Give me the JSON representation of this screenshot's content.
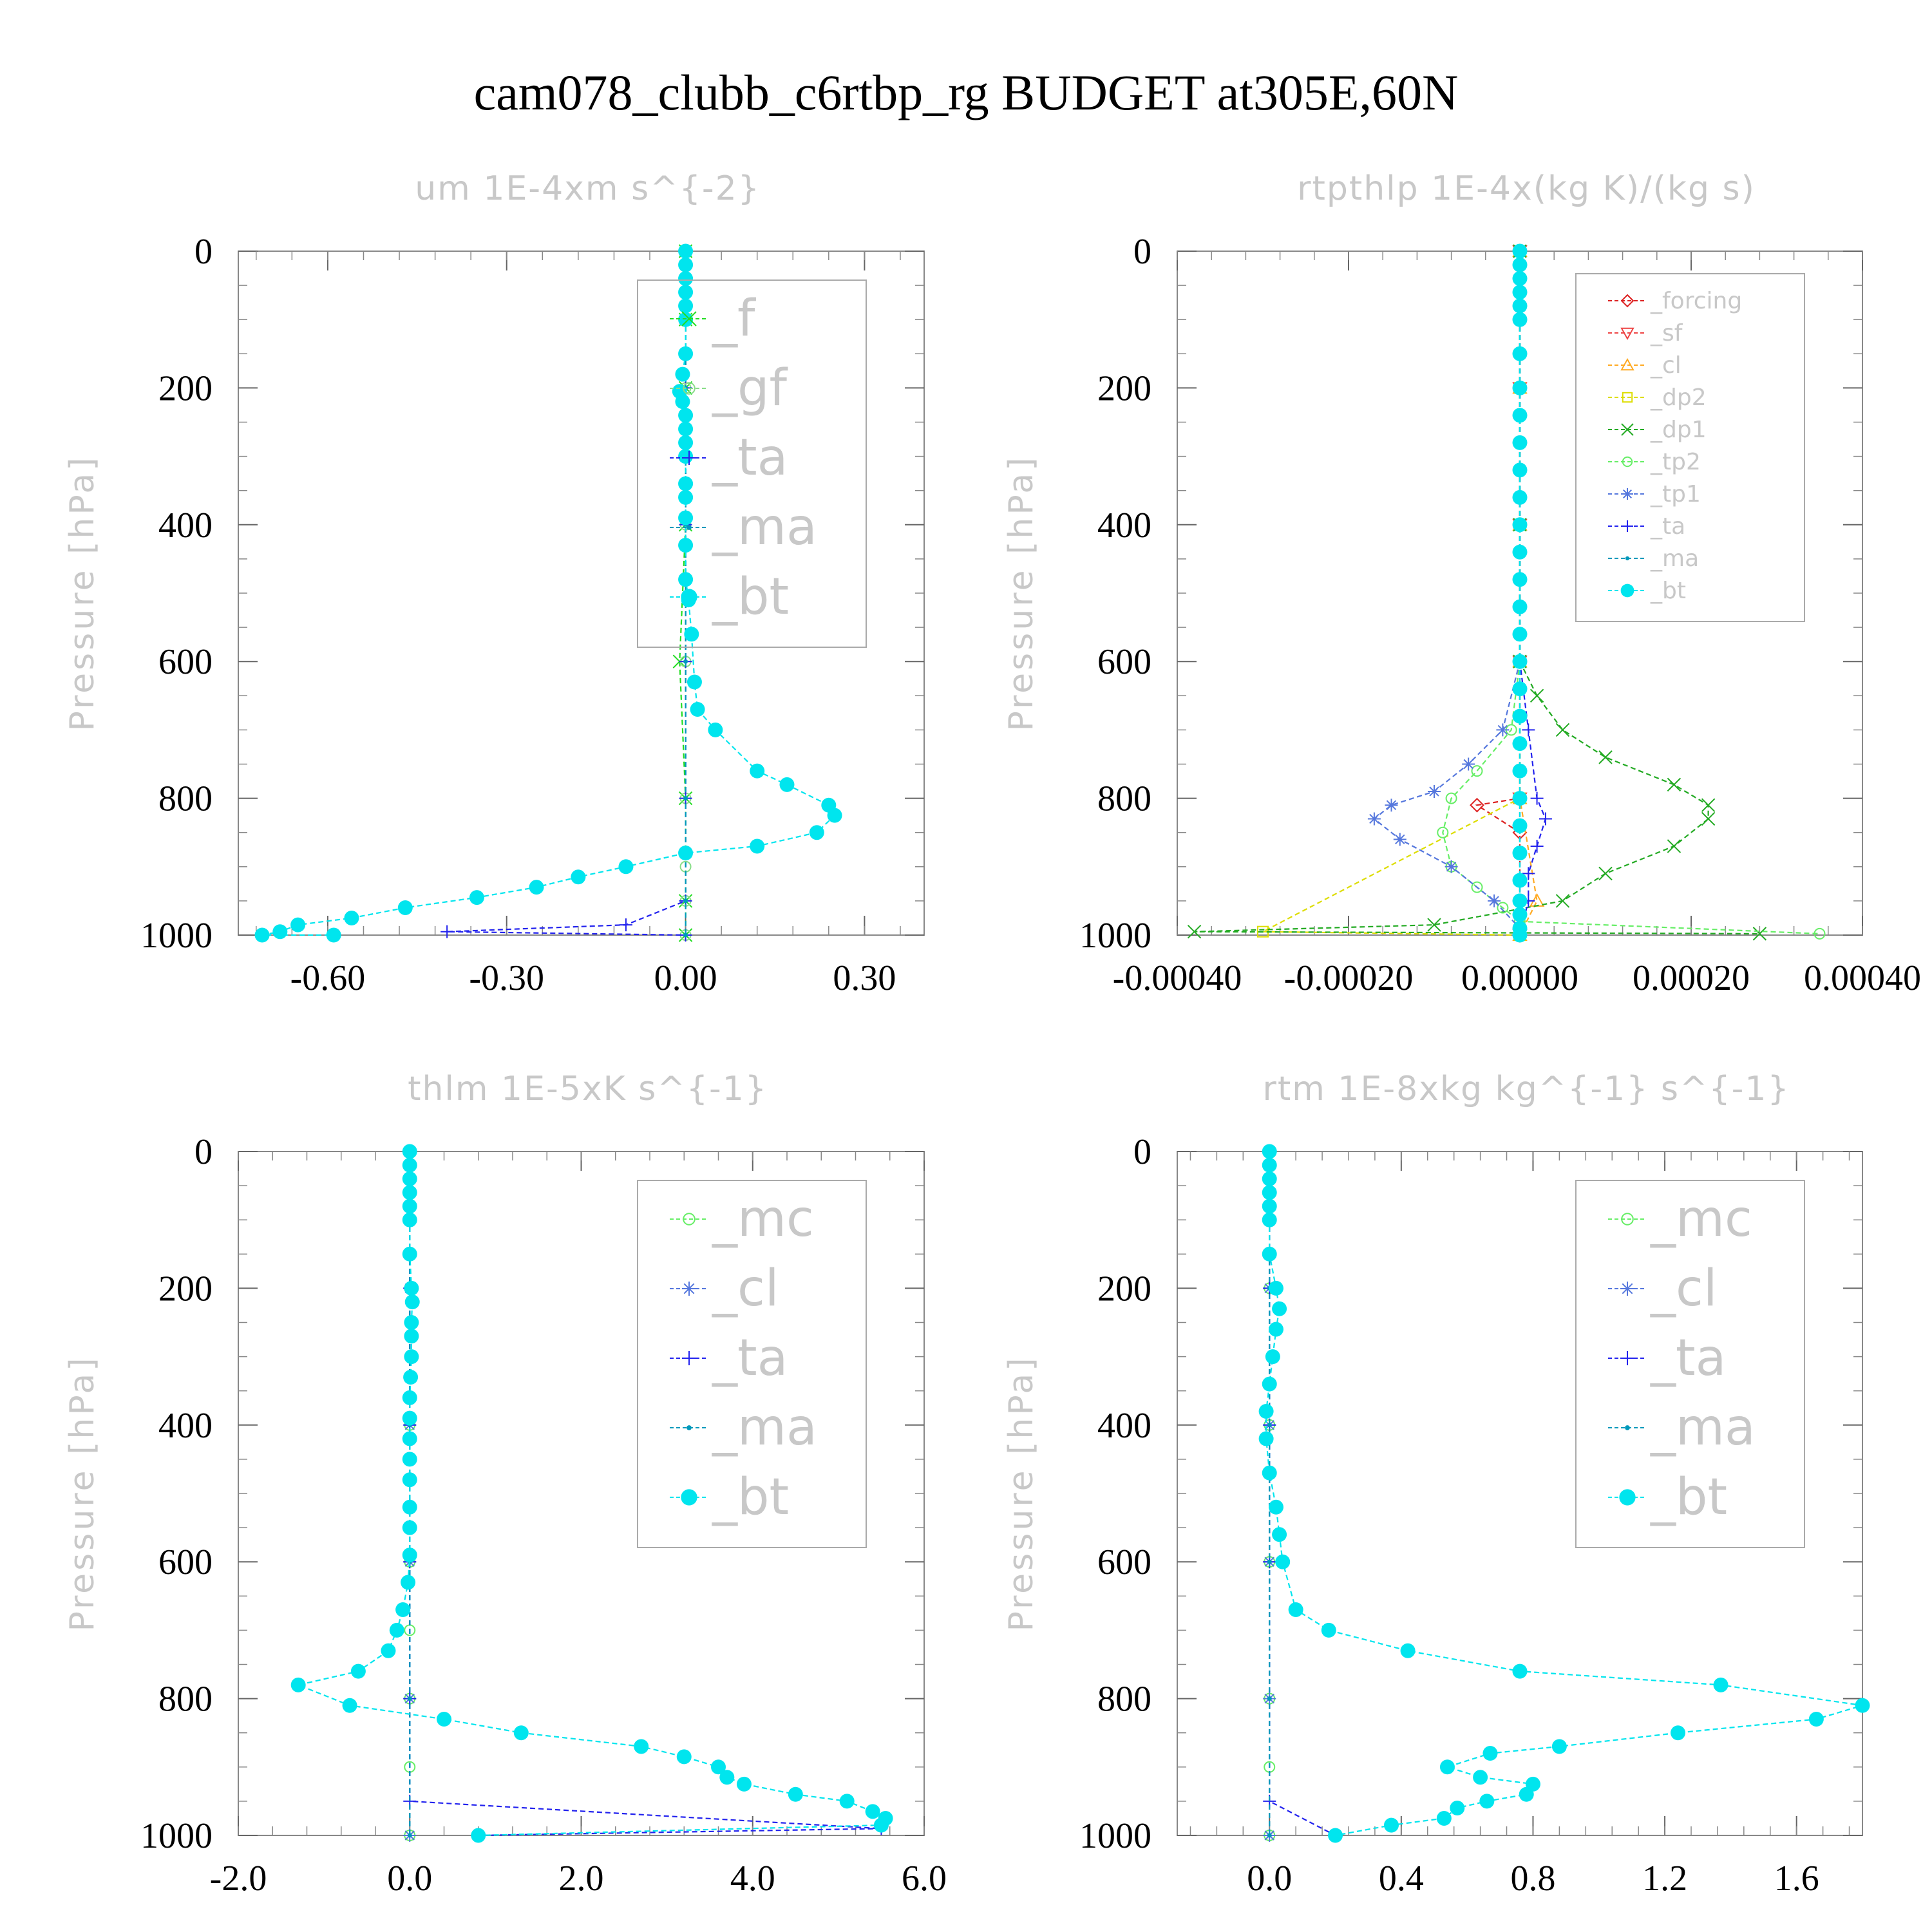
{
  "figure": {
    "title": "cam078_clubb_c6rtbp_rg  BUDGET at305E,60N"
  },
  "chart_data": [
    {
      "type": "line",
      "title": "um  1E-4xm s^{-2}",
      "ylabel": "Pressure [hPa]",
      "ylim": [
        1000,
        0
      ],
      "yticks": [
        0,
        200,
        400,
        600,
        800,
        1000
      ],
      "ytick_labels": [
        "0",
        "200",
        "400",
        "600",
        "800",
        "1000"
      ],
      "xlim": [
        -0.75,
        0.4
      ],
      "xticks": [
        -0.6,
        -0.3,
        0.0,
        0.3
      ],
      "xtick_labels": [
        "-0.60",
        "-0.30",
        "0.00",
        "0.30"
      ],
      "legend_position": "top-right",
      "legend_style": "big",
      "series": [
        {
          "name": "_f",
          "color": "#22dd22",
          "marker": "cross",
          "x": [
            0,
            0,
            0,
            0,
            -0.01,
            0,
            0,
            0
          ],
          "y": [
            0,
            100,
            200,
            400,
            600,
            800,
            950,
            1000
          ]
        },
        {
          "name": "_gf",
          "color": "#88dd88",
          "marker": "circle",
          "x": [
            0,
            0,
            0,
            0,
            0,
            0,
            0,
            0,
            0
          ],
          "y": [
            0,
            100,
            200,
            400,
            600,
            800,
            900,
            950,
            1000
          ]
        },
        {
          "name": "_ta",
          "color": "#2222ee",
          "marker": "plus",
          "x": [
            0,
            0,
            0,
            0,
            0,
            0,
            0,
            -0.1,
            -0.4,
            0
          ],
          "y": [
            0,
            100,
            200,
            400,
            600,
            800,
            950,
            985,
            995,
            1000
          ]
        },
        {
          "name": "_ma",
          "color": "#0099bb",
          "marker": "dot",
          "x": [
            0,
            0,
            0,
            0,
            0,
            0,
            0,
            0
          ],
          "y": [
            0,
            100,
            200,
            400,
            600,
            800,
            950,
            1000
          ]
        },
        {
          "name": "_bt",
          "color": "#00e5ee",
          "marker": "bigdot",
          "x": [
            0,
            0,
            0,
            0,
            0,
            0,
            0,
            -0.005,
            -0.01,
            -0.005,
            0,
            0,
            0,
            0,
            0,
            0,
            0,
            0,
            0,
            0.005,
            0.01,
            0.015,
            0.02,
            0.05,
            0.12,
            0.17,
            0.24,
            0.25,
            0.22,
            0.12,
            0.0,
            -0.1,
            -0.18,
            -0.25,
            -0.35,
            -0.47,
            -0.56,
            -0.65,
            -0.68,
            -0.71,
            -0.59
          ],
          "y": [
            0,
            20,
            40,
            60,
            80,
            100,
            150,
            180,
            205,
            220,
            240,
            260,
            280,
            300,
            340,
            360,
            390,
            430,
            480,
            510,
            560,
            630,
            670,
            700,
            760,
            780,
            810,
            825,
            850,
            870,
            880,
            900,
            915,
            930,
            945,
            960,
            975,
            985,
            995,
            1000,
            1000
          ]
        }
      ]
    },
    {
      "type": "line",
      "title": "rtpthlp  1E-4x(kg K)/(kg s)",
      "ylabel": "Pressure [hPa]",
      "ylim": [
        1000,
        0
      ],
      "yticks": [
        0,
        200,
        400,
        600,
        800,
        1000
      ],
      "ytick_labels": [
        "0",
        "200",
        "400",
        "600",
        "800",
        "1000"
      ],
      "xlim": [
        -0.0004,
        0.0004
      ],
      "xticks": [
        -0.0004,
        -0.0002,
        0.0,
        0.0002,
        0.0004
      ],
      "xtick_labels": [
        "-0.00040",
        "-0.00020",
        "0.00000",
        "0.00020",
        "0.00040"
      ],
      "legend_position": "top-right",
      "legend_style": "small",
      "series": [
        {
          "name": "_forcing",
          "color": "#dd2222",
          "marker": "diamond",
          "x": [
            0,
            0,
            0,
            0,
            0,
            -5e-05,
            0,
            0
          ],
          "y": [
            0,
            200,
            400,
            600,
            800,
            810,
            850,
            1000
          ]
        },
        {
          "name": "_sf",
          "color": "#ee4444",
          "marker": "tridown",
          "x": [
            0,
            0,
            0,
            0,
            0,
            0
          ],
          "y": [
            0,
            200,
            400,
            600,
            800,
            1000
          ]
        },
        {
          "name": "_cl",
          "color": "#ffaa22",
          "marker": "triup",
          "x": [
            0,
            0,
            0,
            0,
            0,
            2e-05,
            0
          ],
          "y": [
            0,
            200,
            400,
            600,
            800,
            950,
            1000
          ]
        },
        {
          "name": "_dp2",
          "color": "#dddd00",
          "marker": "square",
          "x": [
            0,
            0,
            0,
            0,
            0,
            -0.0003,
            0
          ],
          "y": [
            0,
            200,
            400,
            600,
            800,
            995,
            1000
          ]
        },
        {
          "name": "_dp1",
          "color": "#22aa22",
          "marker": "cross",
          "x": [
            0,
            0,
            0,
            2e-05,
            5e-05,
            0.0001,
            0.00018,
            0.00022,
            0.00022,
            0.00018,
            0.0001,
            5e-05,
            -0.0001,
            -0.00038,
            0.00028
          ],
          "y": [
            0,
            400,
            600,
            650,
            700,
            740,
            780,
            810,
            830,
            870,
            910,
            950,
            985,
            995,
            998
          ]
        },
        {
          "name": "_tp2",
          "color": "#66ee66",
          "marker": "circle",
          "x": [
            0,
            0,
            0,
            -1e-05,
            -5e-05,
            -8e-05,
            -9e-05,
            -8e-05,
            -5e-05,
            -2e-05,
            0,
            0.00035
          ],
          "y": [
            0,
            400,
            600,
            700,
            760,
            800,
            850,
            900,
            930,
            960,
            980,
            998
          ]
        },
        {
          "name": "_tp1",
          "color": "#5577dd",
          "marker": "star",
          "x": [
            0,
            0,
            0,
            -2e-05,
            -6e-05,
            -0.0001,
            -0.00015,
            -0.00017,
            -0.00014,
            -8e-05,
            -3e-05,
            0
          ],
          "y": [
            0,
            400,
            600,
            700,
            750,
            790,
            810,
            830,
            860,
            900,
            950,
            990
          ]
        },
        {
          "name": "_ta",
          "color": "#2222ee",
          "marker": "plus",
          "x": [
            0,
            0,
            0,
            1e-05,
            2e-05,
            3e-05,
            2e-05,
            1e-05,
            1e-05,
            0
          ],
          "y": [
            0,
            400,
            600,
            700,
            800,
            830,
            870,
            910,
            950,
            1000
          ]
        },
        {
          "name": "_ma",
          "color": "#0099bb",
          "marker": "dot",
          "x": [
            0,
            0,
            0,
            0,
            0,
            0
          ],
          "y": [
            0,
            200,
            400,
            600,
            800,
            1000
          ]
        },
        {
          "name": "_bt",
          "color": "#00e5ee",
          "marker": "bigdot",
          "x": [
            0,
            0,
            0,
            0,
            0,
            0,
            0,
            0,
            0,
            0,
            0,
            0,
            0,
            0,
            0,
            0,
            0,
            0,
            0,
            0,
            0,
            0,
            0,
            0,
            0,
            0,
            0,
            0,
            0,
            0
          ],
          "y": [
            0,
            20,
            40,
            60,
            80,
            100,
            150,
            200,
            240,
            280,
            320,
            360,
            400,
            440,
            480,
            520,
            560,
            600,
            640,
            680,
            720,
            760,
            800,
            840,
            880,
            920,
            950,
            970,
            990,
            1000
          ]
        }
      ]
    },
    {
      "type": "line",
      "title": "thlm  1E-5xK s^{-1}",
      "ylabel": "Pressure [hPa]",
      "ylim": [
        1000,
        0
      ],
      "yticks": [
        0,
        200,
        400,
        600,
        800,
        1000
      ],
      "ytick_labels": [
        "0",
        "200",
        "400",
        "600",
        "800",
        "1000"
      ],
      "xlim": [
        -2.0,
        6.0
      ],
      "xticks": [
        -2.0,
        0.0,
        2.0,
        4.0,
        6.0
      ],
      "xtick_labels": [
        "-2.0",
        "0.0",
        "2.0",
        "4.0",
        "6.0"
      ],
      "legend_position": "top-right",
      "legend_style": "big",
      "series": [
        {
          "name": "_mc",
          "color": "#66ee66",
          "marker": "circle",
          "x": [
            0,
            0,
            0,
            0,
            0,
            0,
            0,
            0
          ],
          "y": [
            0,
            200,
            400,
            600,
            700,
            800,
            900,
            1000
          ]
        },
        {
          "name": "_cl",
          "color": "#5577dd",
          "marker": "star",
          "x": [
            0,
            0,
            0,
            0,
            0,
            0
          ],
          "y": [
            0,
            200,
            400,
            600,
            800,
            1000
          ]
        },
        {
          "name": "_ta",
          "color": "#2222ee",
          "marker": "plus",
          "x": [
            0,
            0,
            0,
            0,
            0,
            0,
            5.5,
            0.8
          ],
          "y": [
            0,
            200,
            400,
            600,
            800,
            950,
            990,
            1000
          ]
        },
        {
          "name": "_ma",
          "color": "#0099bb",
          "marker": "dot",
          "x": [
            0,
            0,
            0,
            0,
            0,
            0
          ],
          "y": [
            0,
            200,
            400,
            600,
            800,
            1000
          ]
        },
        {
          "name": "_bt",
          "color": "#00e5ee",
          "marker": "bigdot",
          "x": [
            0,
            0,
            0,
            0,
            0,
            0,
            0,
            0.02,
            0.03,
            0.02,
            0.02,
            0.02,
            0.01,
            0,
            0,
            0,
            0,
            0,
            0,
            0,
            0,
            -0.02,
            -0.08,
            -0.15,
            -0.25,
            -0.6,
            -1.3,
            -0.7,
            0.4,
            1.3,
            2.7,
            3.2,
            3.6,
            3.7,
            3.9,
            4.5,
            5.1,
            5.4,
            5.55,
            5.5,
            0.8
          ],
          "y": [
            0,
            20,
            40,
            60,
            80,
            100,
            150,
            200,
            220,
            250,
            270,
            300,
            330,
            360,
            390,
            420,
            450,
            480,
            520,
            550,
            590,
            630,
            670,
            700,
            730,
            760,
            780,
            810,
            830,
            850,
            870,
            885,
            900,
            915,
            925,
            940,
            950,
            965,
            975,
            985,
            1000
          ]
        }
      ]
    },
    {
      "type": "line",
      "title": "rtm  1E-8xkg kg^{-1} s^{-1}",
      "ylabel": "Pressure [hPa]",
      "ylim": [
        1000,
        0
      ],
      "yticks": [
        0,
        200,
        400,
        600,
        800,
        1000
      ],
      "ytick_labels": [
        "0",
        "200",
        "400",
        "600",
        "800",
        "1000"
      ],
      "xlim": [
        -0.28,
        1.8
      ],
      "xticks": [
        0.0,
        0.4,
        0.8,
        1.2,
        1.6
      ],
      "xtick_labels": [
        "0.0",
        "0.4",
        "0.8",
        "1.2",
        "1.6"
      ],
      "legend_position": "top-right",
      "legend_style": "big",
      "series": [
        {
          "name": "_mc",
          "color": "#66ee66",
          "marker": "circle",
          "x": [
            0,
            0,
            0,
            0,
            0,
            0,
            0
          ],
          "y": [
            0,
            200,
            400,
            600,
            800,
            900,
            1000
          ]
        },
        {
          "name": "_cl",
          "color": "#5577dd",
          "marker": "star",
          "x": [
            0,
            0,
            0,
            0,
            0,
            0
          ],
          "y": [
            0,
            200,
            400,
            600,
            800,
            1000
          ]
        },
        {
          "name": "_ta",
          "color": "#2222ee",
          "marker": "plus",
          "x": [
            0,
            0,
            0,
            0,
            0,
            0.2
          ],
          "y": [
            0,
            200,
            400,
            600,
            950,
            1000
          ]
        },
        {
          "name": "_ma",
          "color": "#0099bb",
          "marker": "dot",
          "x": [
            0,
            0,
            0,
            0,
            0,
            0
          ],
          "y": [
            0,
            200,
            400,
            600,
            800,
            1000
          ]
        },
        {
          "name": "_bt",
          "color": "#00e5ee",
          "marker": "bigdot",
          "x": [
            0,
            0,
            0,
            0,
            0,
            0,
            0,
            0.02,
            0.03,
            0.02,
            0.01,
            0,
            -0.01,
            -0.01,
            0,
            0.02,
            0.03,
            0.04,
            0.08,
            0.18,
            0.42,
            0.76,
            1.37,
            1.8,
            1.66,
            1.24,
            0.88,
            0.67,
            0.54,
            0.64,
            0.8,
            0.78,
            0.66,
            0.57,
            0.53,
            0.37,
            0.2
          ],
          "y": [
            0,
            20,
            40,
            60,
            80,
            100,
            150,
            200,
            230,
            260,
            300,
            340,
            380,
            420,
            470,
            520,
            560,
            600,
            670,
            700,
            730,
            760,
            780,
            810,
            830,
            850,
            870,
            880,
            900,
            915,
            925,
            940,
            950,
            960,
            975,
            985,
            1000
          ]
        }
      ]
    }
  ]
}
